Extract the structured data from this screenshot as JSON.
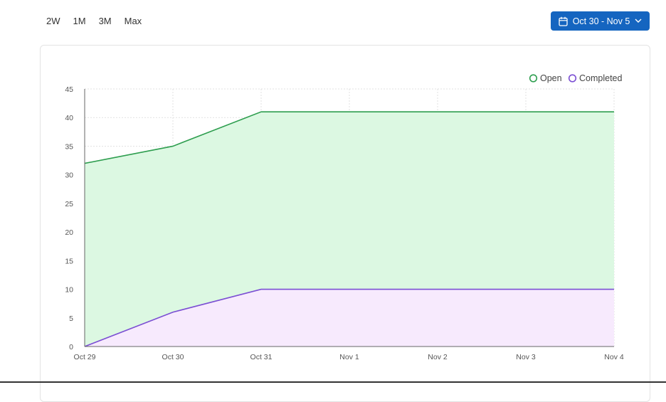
{
  "toolbar": {
    "range_tabs": [
      "2W",
      "1M",
      "3M",
      "Max"
    ],
    "date_range_label": "Oct 30 - Nov 5"
  },
  "colors": {
    "accent": "#1565c0",
    "open_line": "#2e9e4f",
    "open_fill": "#dcf8e2",
    "completed_line": "#7b4fd3",
    "completed_fill": "#f7eafd"
  },
  "chart_data": {
    "type": "area",
    "categories": [
      "Oct 29",
      "Oct 30",
      "Oct 31",
      "Nov 1",
      "Nov 2",
      "Nov 3",
      "Nov 4"
    ],
    "series": [
      {
        "name": "Open",
        "values": [
          32,
          35,
          41,
          41,
          41,
          41,
          41
        ]
      },
      {
        "name": "Completed",
        "values": [
          0,
          6,
          10,
          10,
          10,
          10,
          10
        ]
      }
    ],
    "yticks": [
      0,
      5,
      10,
      15,
      20,
      25,
      30,
      35,
      40,
      45
    ],
    "ylim": [
      0,
      45
    ],
    "grid": true,
    "legend_position": "top-right"
  }
}
